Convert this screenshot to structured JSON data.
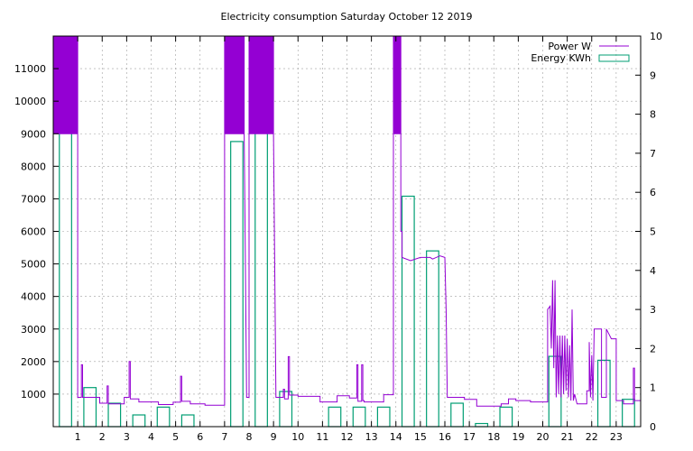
{
  "chart_data": {
    "type": "line",
    "title": "Electricity consumption Saturday October 12 2019",
    "xlim": [
      0,
      24
    ],
    "x_ticks": [
      1,
      2,
      3,
      4,
      5,
      6,
      7,
      8,
      9,
      10,
      11,
      12,
      13,
      14,
      15,
      16,
      17,
      18,
      19,
      20,
      21,
      22,
      23
    ],
    "y_left": {
      "min": 0,
      "max": 12000,
      "ticks": [
        1000,
        2000,
        3000,
        4000,
        5000,
        6000,
        7000,
        8000,
        9000,
        10000,
        11000
      ]
    },
    "y_right": {
      "min": 0,
      "max": 10,
      "ticks": [
        0,
        1,
        2,
        3,
        4,
        5,
        6,
        7,
        8,
        9,
        10
      ]
    },
    "grid": true,
    "legend_position": "top-right",
    "series": [
      {
        "name": "Power W",
        "color": "#9400d3",
        "axis": "left",
        "points": [
          [
            0.0,
            12000
          ],
          [
            0.0,
            9000
          ],
          [
            1.0,
            9000
          ],
          [
            1.0,
            12000
          ],
          [
            0.0,
            12000
          ],
          [
            1.0,
            9000
          ],
          [
            1.0,
            900
          ],
          [
            1.15,
            900
          ],
          [
            1.15,
            1900
          ],
          [
            1.2,
            1900
          ],
          [
            1.2,
            900
          ],
          [
            1.9,
            900
          ],
          [
            1.9,
            720
          ],
          [
            2.2,
            720
          ],
          [
            2.2,
            1250
          ],
          [
            2.25,
            1250
          ],
          [
            2.25,
            700
          ],
          [
            2.9,
            700
          ],
          [
            2.9,
            900
          ],
          [
            3.1,
            900
          ],
          [
            3.1,
            2000
          ],
          [
            3.15,
            2000
          ],
          [
            3.15,
            850
          ],
          [
            3.5,
            850
          ],
          [
            3.5,
            760
          ],
          [
            4.3,
            760
          ],
          [
            4.3,
            680
          ],
          [
            4.9,
            680
          ],
          [
            4.9,
            750
          ],
          [
            5.2,
            750
          ],
          [
            5.2,
            1550
          ],
          [
            5.25,
            1550
          ],
          [
            5.25,
            780
          ],
          [
            5.6,
            780
          ],
          [
            5.6,
            700
          ],
          [
            6.2,
            700
          ],
          [
            6.2,
            660
          ],
          [
            7.0,
            660
          ],
          [
            7.0,
            12000
          ],
          [
            7.8,
            12000
          ],
          [
            7.8,
            9000
          ],
          [
            7.0,
            9000
          ],
          [
            7.8,
            9000
          ],
          [
            7.9,
            900
          ],
          [
            8.0,
            900
          ],
          [
            8.0,
            12000
          ],
          [
            9.0,
            12000
          ],
          [
            9.0,
            9000
          ],
          [
            8.0,
            9000
          ],
          [
            9.0,
            9000
          ],
          [
            9.1,
            900
          ],
          [
            9.4,
            900
          ],
          [
            9.4,
            1150
          ],
          [
            9.45,
            1150
          ],
          [
            9.45,
            850
          ],
          [
            9.6,
            850
          ],
          [
            9.6,
            2150
          ],
          [
            9.65,
            2150
          ],
          [
            9.65,
            970
          ],
          [
            10.0,
            970
          ],
          [
            10.0,
            930
          ],
          [
            10.9,
            930
          ],
          [
            10.9,
            760
          ],
          [
            11.6,
            760
          ],
          [
            11.6,
            950
          ],
          [
            12.1,
            950
          ],
          [
            12.1,
            880
          ],
          [
            12.4,
            880
          ],
          [
            12.4,
            1900
          ],
          [
            12.45,
            1900
          ],
          [
            12.45,
            780
          ],
          [
            12.6,
            780
          ],
          [
            12.6,
            1900
          ],
          [
            12.65,
            1900
          ],
          [
            12.65,
            800
          ],
          [
            12.7,
            800
          ],
          [
            12.7,
            760
          ],
          [
            13.5,
            760
          ],
          [
            13.5,
            980
          ],
          [
            13.9,
            980
          ],
          [
            13.9,
            12000
          ],
          [
            14.2,
            12000
          ],
          [
            14.2,
            9000
          ],
          [
            13.9,
            9000
          ],
          [
            14.2,
            9000
          ],
          [
            14.2,
            6000
          ],
          [
            14.25,
            6000
          ],
          [
            14.25,
            5200
          ],
          [
            14.6,
            5100
          ],
          [
            15.0,
            5200
          ],
          [
            15.4,
            5200
          ],
          [
            15.5,
            5150
          ],
          [
            15.8,
            5250
          ],
          [
            16.0,
            5200
          ],
          [
            16.05,
            3600
          ],
          [
            16.1,
            900
          ],
          [
            16.8,
            900
          ],
          [
            16.8,
            840
          ],
          [
            17.3,
            840
          ],
          [
            17.3,
            630
          ],
          [
            18.3,
            630
          ],
          [
            18.3,
            700
          ],
          [
            18.6,
            700
          ],
          [
            18.6,
            850
          ],
          [
            18.9,
            850
          ],
          [
            18.9,
            800
          ],
          [
            19.5,
            800
          ],
          [
            19.5,
            760
          ],
          [
            20.2,
            760
          ],
          [
            20.2,
            3600
          ],
          [
            20.3,
            3700
          ],
          [
            20.35,
            2400
          ],
          [
            20.4,
            4500
          ],
          [
            20.45,
            1800
          ],
          [
            20.5,
            4500
          ],
          [
            20.55,
            900
          ],
          [
            20.6,
            2800
          ],
          [
            20.65,
            1000
          ],
          [
            20.7,
            2800
          ],
          [
            20.75,
            900
          ],
          [
            20.8,
            2800
          ],
          [
            20.85,
            1000
          ],
          [
            20.9,
            2800
          ],
          [
            20.95,
            1100
          ],
          [
            21.0,
            2700
          ],
          [
            21.05,
            900
          ],
          [
            21.1,
            2500
          ],
          [
            21.15,
            800
          ],
          [
            21.2,
            3600
          ],
          [
            21.25,
            800
          ],
          [
            21.3,
            1000
          ],
          [
            21.4,
            700
          ],
          [
            21.8,
            700
          ],
          [
            21.8,
            1100
          ],
          [
            21.9,
            1100
          ],
          [
            21.9,
            2600
          ],
          [
            21.95,
            900
          ],
          [
            22.0,
            2200
          ],
          [
            22.05,
            800
          ],
          [
            22.1,
            3000
          ],
          [
            22.4,
            3000
          ],
          [
            22.4,
            900
          ],
          [
            22.6,
            900
          ],
          [
            22.6,
            3000
          ],
          [
            22.8,
            2700
          ],
          [
            23.0,
            2700
          ],
          [
            23.0,
            800
          ],
          [
            23.3,
            800
          ],
          [
            23.3,
            700
          ],
          [
            23.7,
            700
          ],
          [
            23.7,
            1800
          ],
          [
            23.75,
            1800
          ],
          [
            23.75,
            800
          ],
          [
            24.0,
            800
          ]
        ]
      },
      {
        "name": "Energy KWh",
        "color": "#009e73",
        "axis": "right",
        "bars": [
          [
            0,
            9.6
          ],
          [
            1,
            1.0
          ],
          [
            2,
            0.6
          ],
          [
            3,
            0.3
          ],
          [
            4,
            0.5
          ],
          [
            5,
            0.3
          ],
          [
            6,
            0.0
          ],
          [
            7,
            7.3
          ],
          [
            8,
            9.4
          ],
          [
            9,
            0.9
          ],
          [
            10,
            0.0
          ],
          [
            11,
            0.5
          ],
          [
            12,
            0.5
          ],
          [
            13,
            0.5
          ],
          [
            14,
            5.9
          ],
          [
            15,
            4.5
          ],
          [
            16,
            0.6
          ],
          [
            17,
            0.08
          ],
          [
            18,
            0.5
          ],
          [
            19,
            0.0
          ],
          [
            20,
            1.8
          ],
          [
            21,
            0.0
          ],
          [
            22,
            1.7
          ],
          [
            23,
            0.7
          ]
        ]
      }
    ]
  }
}
